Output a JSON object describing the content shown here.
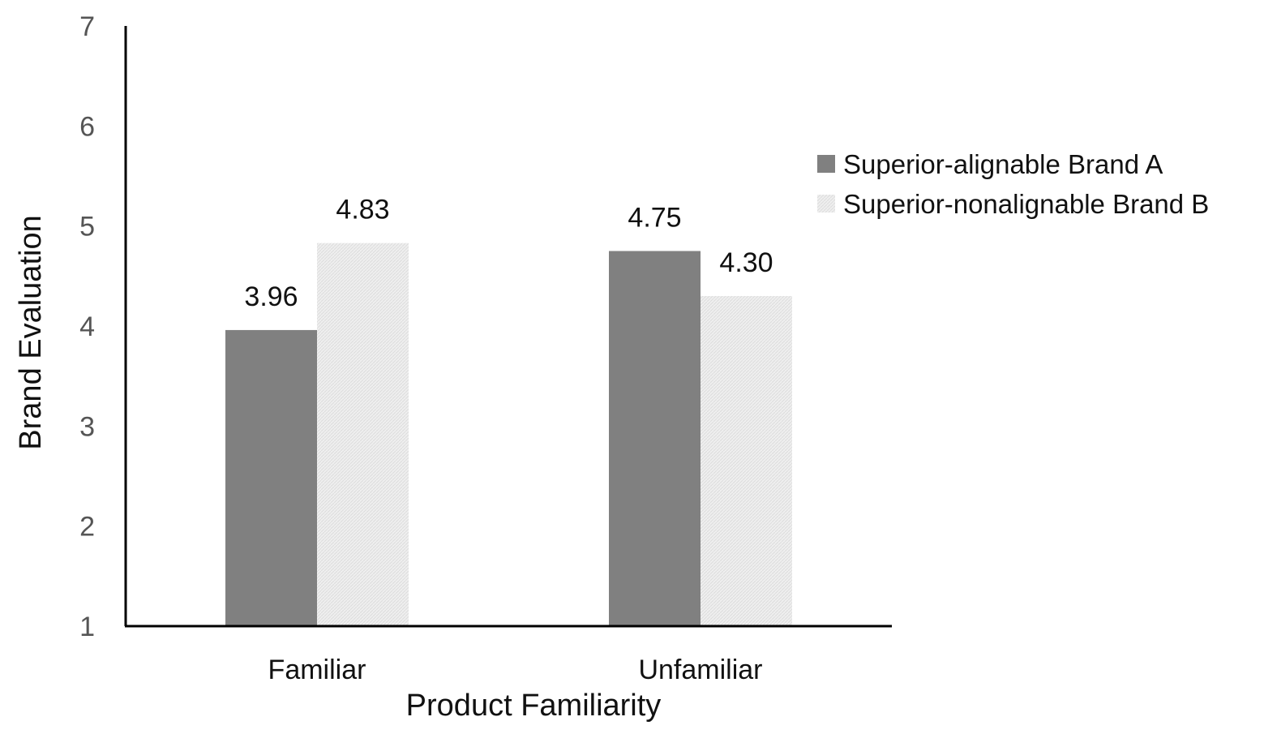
{
  "chart_data": {
    "type": "bar",
    "categories": [
      "Familiar",
      "Unfamiliar"
    ],
    "series": [
      {
        "name": "Superior-alignable Brand A",
        "values": [
          3.96,
          4.75
        ],
        "labels": [
          "3.96",
          "4.75"
        ],
        "color": "#808080"
      },
      {
        "name": "Superior-nonalignable Brand B",
        "values": [
          4.83,
          4.3
        ],
        "labels": [
          "4.83",
          "4.30"
        ],
        "color": "#ececec"
      }
    ],
    "xlabel": "Product Familiarity",
    "ylabel": "Brand Evaluation",
    "ylim": [
      1,
      7
    ],
    "yticks": [
      "1",
      "2",
      "3",
      "4",
      "5",
      "6",
      "7"
    ],
    "grid": false,
    "legend": "right"
  }
}
